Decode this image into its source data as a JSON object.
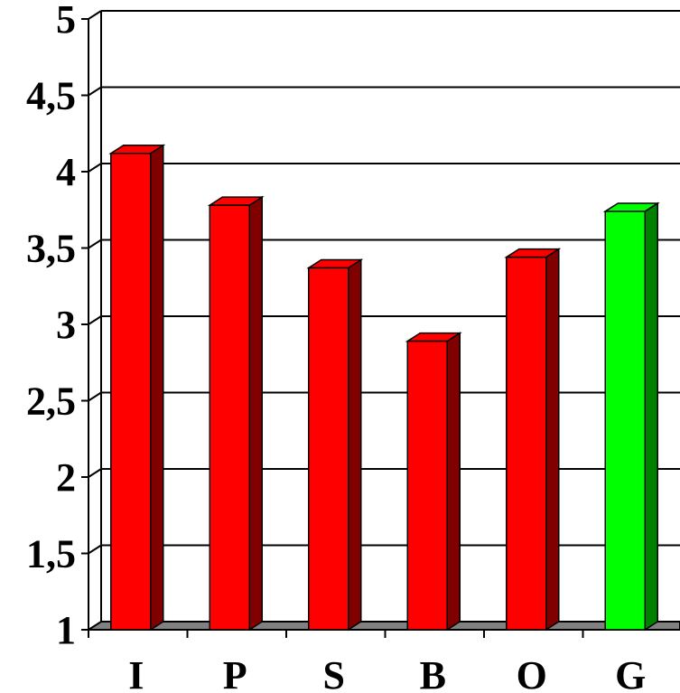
{
  "chart_data": {
    "type": "bar",
    "style": "3d",
    "categories": [
      "I",
      "P",
      "S",
      "B",
      "O",
      "G"
    ],
    "values": [
      4.12,
      3.78,
      3.37,
      2.89,
      3.44,
      3.74
    ],
    "bar_colors": [
      "#ff0000",
      "#ff0000",
      "#ff0000",
      "#ff0000",
      "#ff0000",
      "#00ff00"
    ],
    "side_colors": [
      "#800000",
      "#800000",
      "#800000",
      "#800000",
      "#800000",
      "#008000"
    ],
    "floor_color": "#808080",
    "ylim": [
      1,
      5
    ],
    "yticks": [
      1,
      1.5,
      2,
      2.5,
      3,
      3.5,
      4,
      4.5,
      5
    ],
    "ytick_labels": [
      "1",
      "1,5",
      "2",
      "2,5",
      "3",
      "3,5",
      "4",
      "4,5",
      "5"
    ],
    "grid": true,
    "title": "",
    "xlabel": "",
    "ylabel": ""
  }
}
